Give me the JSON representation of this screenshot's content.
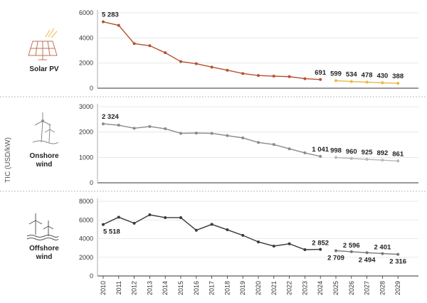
{
  "chart_data": {
    "type": "line",
    "ylabel": "TIC (USD/kW)",
    "x": [
      "2010",
      "2011",
      "2012",
      "2013",
      "2014",
      "2015",
      "2016",
      "2017",
      "2018",
      "2019",
      "2020",
      "2021",
      "2022",
      "2023",
      "2024",
      "2025",
      "2026",
      "2027",
      "2028",
      "2029"
    ],
    "panels": [
      {
        "label_lines": [
          "Solar PV"
        ],
        "ylim": [
          0,
          6000
        ],
        "yticks": [
          "0",
          "2000",
          "4000",
          "6000"
        ],
        "hist_color": "#b5522f",
        "proj_color": "#e8b84b",
        "historical": [
          5283,
          5000,
          3550,
          3380,
          2820,
          2120,
          1950,
          1680,
          1430,
          1170,
          1010,
          960,
          920,
          760,
          691
        ],
        "projected": [
          599,
          534,
          478,
          430,
          388
        ],
        "labels": [
          {
            "i": 0,
            "text": "5 283"
          },
          {
            "i": 14,
            "text": "691"
          },
          {
            "i": 15,
            "text": "599"
          },
          {
            "i": 16,
            "text": "534"
          },
          {
            "i": 17,
            "text": "478"
          },
          {
            "i": 18,
            "text": "430"
          },
          {
            "i": 19,
            "text": "388"
          }
        ]
      },
      {
        "label_lines": [
          "Onshore",
          "wind"
        ],
        "ylim": [
          0,
          3000
        ],
        "yticks": [
          "0",
          "1000",
          "2000",
          "3000"
        ],
        "hist_color": "#8a8a8a",
        "proj_color": "#b8b8b8",
        "historical": [
          2324,
          2270,
          2150,
          2220,
          2130,
          1950,
          1960,
          1950,
          1860,
          1770,
          1590,
          1510,
          1340,
          1180,
          1041
        ],
        "projected": [
          998,
          960,
          925,
          892,
          861
        ],
        "labels": [
          {
            "i": 0,
            "text": "2 324"
          },
          {
            "i": 14,
            "text": "1 041"
          },
          {
            "i": 15,
            "text": "998"
          },
          {
            "i": 16,
            "text": "960"
          },
          {
            "i": 17,
            "text": "925"
          },
          {
            "i": 18,
            "text": "892"
          },
          {
            "i": 19,
            "text": "861"
          }
        ]
      },
      {
        "label_lines": [
          "Offshore",
          "wind"
        ],
        "ylim": [
          0,
          8000
        ],
        "yticks": [
          "0",
          "2000",
          "4000",
          "6000",
          "8000"
        ],
        "hist_color": "#3a3a3a",
        "proj_color": "#777777",
        "historical": [
          5518,
          6300,
          5650,
          6550,
          6250,
          6250,
          4900,
          5530,
          4950,
          4350,
          3650,
          3200,
          3450,
          2820,
          2852
        ],
        "projected": [
          2709,
          2596,
          2494,
          2401,
          2316
        ],
        "labels": [
          {
            "i": 0,
            "text": "5 518"
          },
          {
            "i": 14,
            "text": "2 852"
          },
          {
            "i": 15,
            "text": "2 709"
          },
          {
            "i": 16,
            "text": "2 596"
          },
          {
            "i": 17,
            "text": "2 494"
          },
          {
            "i": 18,
            "text": "2 401"
          },
          {
            "i": 19,
            "text": "2 316"
          }
        ]
      }
    ]
  }
}
